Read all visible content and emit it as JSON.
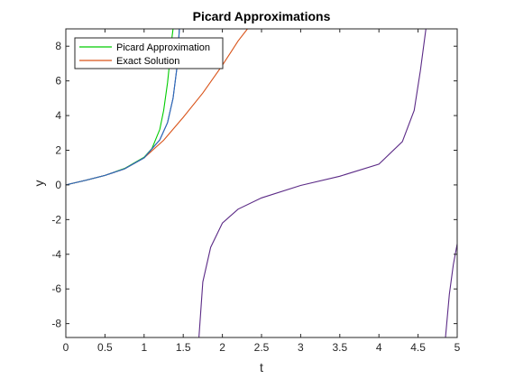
{
  "chart_data": {
    "type": "line",
    "title": "Picard Approximations",
    "xlabel": "t",
    "ylabel": "y",
    "xlim": [
      0,
      5
    ],
    "ylim": [
      -8.8,
      9
    ],
    "xticks": [
      0,
      0.5,
      1,
      1.5,
      2,
      2.5,
      3,
      3.5,
      4,
      4.5,
      5
    ],
    "xtick_labels": [
      "0",
      "0.5",
      "1",
      "1.5",
      "2",
      "2.5",
      "3",
      "3.5",
      "4",
      "4.5",
      "5"
    ],
    "yticks": [
      -8,
      -6,
      -4,
      -2,
      0,
      2,
      4,
      6,
      8
    ],
    "ytick_labels": [
      "-8",
      "-6",
      "-4",
      "-2",
      "0",
      "2",
      "4",
      "6",
      "8"
    ],
    "grid": false,
    "legend_position": "top-left",
    "series": [
      {
        "name": "Picard Approximation",
        "color": "#00cc00",
        "x": [
          0,
          0.25,
          0.5,
          0.75,
          1.0,
          1.1,
          1.2,
          1.25,
          1.3,
          1.33,
          1.35,
          1.37
        ],
        "y": [
          0,
          0.26,
          0.55,
          0.95,
          1.6,
          2.1,
          3.2,
          4.3,
          5.9,
          7.2,
          8.3,
          9.0
        ]
      },
      {
        "name": "Exact Solution",
        "color": "#d95319",
        "x": [
          0,
          0.25,
          0.5,
          0.75,
          1.0,
          1.25,
          1.5,
          1.75,
          2.0,
          2.1,
          2.2,
          2.32
        ],
        "y": [
          0,
          0.26,
          0.55,
          0.93,
          1.56,
          2.58,
          3.9,
          5.3,
          6.9,
          7.6,
          8.3,
          9.0
        ]
      },
      {
        "name": "",
        "color": "#5b2a86",
        "x": [
          0,
          0.25,
          0.5,
          0.75,
          1.0,
          1.2,
          1.3,
          1.37,
          1.42,
          1.45
        ],
        "y": [
          0,
          0.26,
          0.55,
          0.93,
          1.56,
          2.6,
          3.6,
          5.0,
          6.8,
          9.0
        ]
      },
      {
        "name": "",
        "color": "#5b2a86",
        "x": [
          1.7,
          1.75,
          1.85,
          2.0,
          2.2,
          2.5,
          3.0,
          3.5,
          4.0,
          4.3,
          4.45,
          4.53,
          4.6
        ],
        "y": [
          -8.8,
          -5.6,
          -3.6,
          -2.2,
          -1.4,
          -0.75,
          -0.03,
          0.5,
          1.2,
          2.5,
          4.3,
          6.6,
          9.0
        ]
      },
      {
        "name": "",
        "color": "#5b2a86",
        "x": [
          4.85,
          4.9,
          4.95,
          5.0
        ],
        "y": [
          -8.8,
          -6.3,
          -4.6,
          -3.4
        ]
      },
      {
        "name": "",
        "color": "#2a6fbb",
        "x": [
          0,
          0.25,
          0.5,
          0.75,
          1.0,
          1.2,
          1.3,
          1.37,
          1.42,
          1.45
        ],
        "y": [
          0,
          0.26,
          0.55,
          0.93,
          1.56,
          2.6,
          3.6,
          5.0,
          6.8,
          9.0
        ]
      }
    ],
    "legend": [
      "Picard Approximation",
      "Exact Solution"
    ]
  }
}
